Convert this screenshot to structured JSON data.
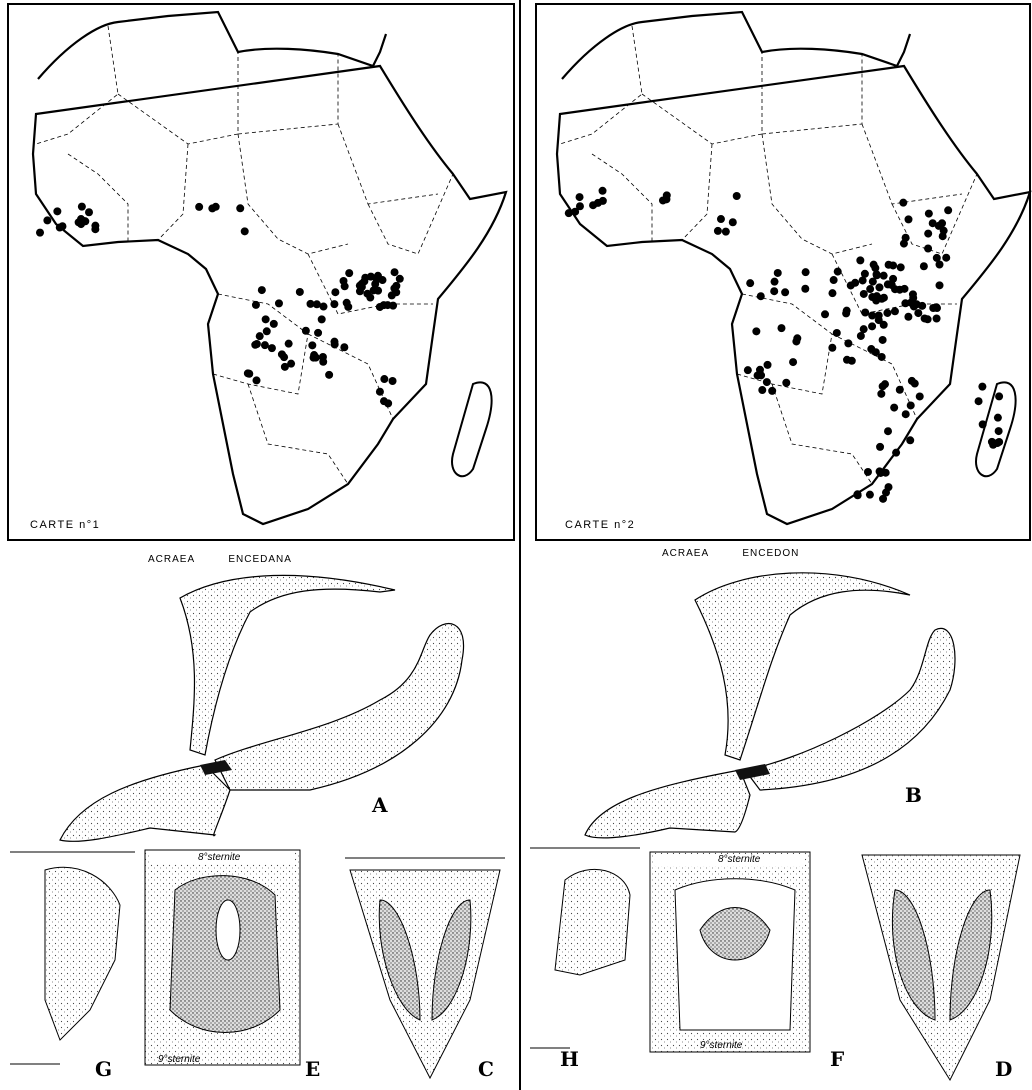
{
  "maps": [
    {
      "label": "CARTE n°1"
    },
    {
      "label": "CARTE n°2"
    }
  ],
  "species": [
    {
      "name": "ACRAEA ENCEDANA",
      "figure_label": "A",
      "details": [
        {
          "label": "G"
        },
        {
          "label": "E",
          "top": "8°sternite",
          "bottom": "9°sternite"
        },
        {
          "label": "C"
        }
      ]
    },
    {
      "name": "ACRAEA ENCEDON",
      "figure_label": "B",
      "details": [
        {
          "label": "H"
        },
        {
          "label": "F",
          "top": "8°sternite",
          "bottom": "9°sternite"
        },
        {
          "label": "D"
        }
      ]
    }
  ]
}
